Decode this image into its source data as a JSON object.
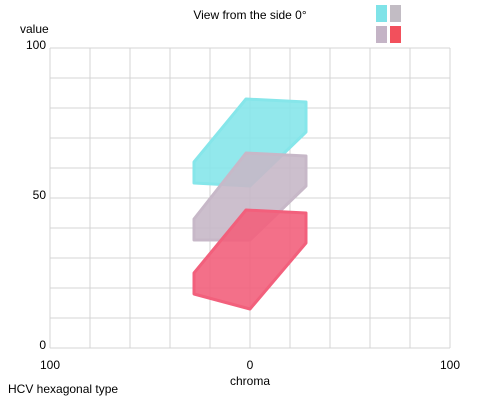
{
  "chart_data": {
    "type": "polygon",
    "title": "View from the side 0°",
    "x_label": "chroma",
    "y_label": "value",
    "footer": "HCV hexagonal type",
    "xlim": [
      -100,
      100
    ],
    "ylim": [
      0,
      100
    ],
    "xticks": [
      {
        "value": -100,
        "label": "100"
      },
      0,
      100
    ],
    "yticks": [
      0,
      50,
      100
    ],
    "xgrid": [
      -100,
      -80,
      -60,
      -40,
      -20,
      0,
      20,
      40,
      60,
      80,
      100
    ],
    "ygrid": [
      0,
      10,
      20,
      30,
      40,
      50,
      60,
      70,
      80,
      90,
      100
    ],
    "grid": true,
    "series": [
      {
        "color": "#86e6ea",
        "x": [
          -28,
          -28,
          -2,
          28,
          28,
          0
        ],
        "values": [
          55,
          62,
          83,
          82,
          72,
          54
        ]
      },
      {
        "color": "#c7b8c8",
        "x": [
          -28,
          -28,
          -2,
          28,
          28,
          0
        ],
        "values": [
          36,
          43,
          65,
          64,
          54,
          36
        ]
      },
      {
        "color": "#f2607c",
        "x": [
          -28,
          -28,
          -2,
          28,
          28,
          0
        ],
        "values": [
          18,
          25,
          46,
          45,
          35,
          13
        ]
      }
    ]
  }
}
